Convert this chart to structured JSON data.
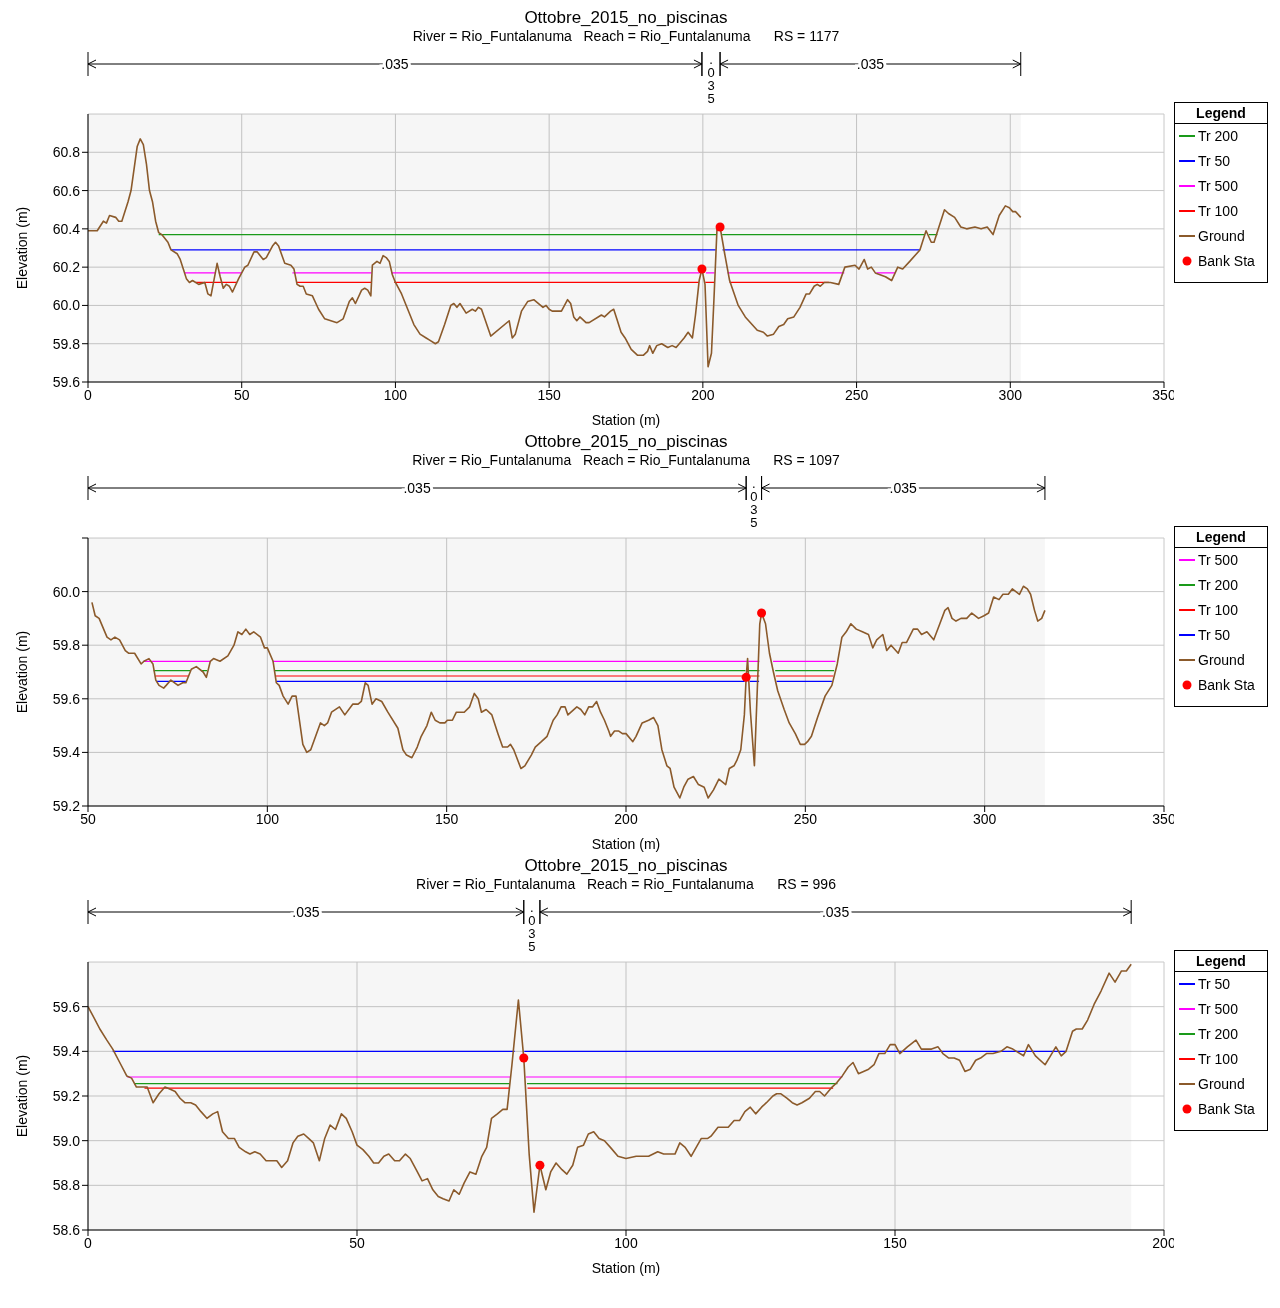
{
  "chart_data": [
    {
      "type": "line",
      "title": "Ottobre_2015_no_piscinas",
      "subtitle": "River = Rio_Funtalanuma   Reach = Rio_Funtalanuma      RS = 1177",
      "xlabel": "Station (m)",
      "ylabel": "Elevation (m)",
      "legend_title": "Legend",
      "legend": "right",
      "grid": true,
      "xlim": [
        0,
        350
      ],
      "xticks": [
        0,
        50,
        100,
        150,
        200,
        250,
        300,
        350
      ],
      "ylim": [
        59.6,
        61.0
      ],
      "yticks": [
        59.6,
        59.8,
        {
          "value": 60.0,
          "label": "60.0"
        },
        60.2,
        60.4,
        60.6,
        60.8
      ],
      "bands": [
        {
          "axis": "x",
          "from": 0,
          "to": 199.7,
          "label": ".035"
        },
        {
          "axis": "x",
          "from": 199.7,
          "to": 205.6,
          "label": ".035"
        },
        {
          "axis": "x",
          "from": 205.6,
          "to": 303.4,
          "label": ".035"
        }
      ],
      "series": [
        {
          "name": "Tr 200",
          "marker": "none",
          "color": "#1a9a1a",
          "x": [
            23,
            204.3,
            205.3,
            206.3,
            272.2,
            272.9,
            273.5,
            276.3
          ],
          "values": [
            60.37,
            60.37,
            null,
            60.37,
            60.37,
            null,
            60.37,
            60.37
          ]
        },
        {
          "name": "Tr 50",
          "marker": "none",
          "color": "#0000ff",
          "x": [
            27,
            59,
            61,
            62.5,
            204.2,
            205.3,
            206.4,
            270.6
          ],
          "values": [
            60.29,
            60.29,
            null,
            60.29,
            60.29,
            null,
            60.29,
            60.29
          ]
        },
        {
          "name": "Tr 500",
          "marker": "none",
          "color": "#ff00ff",
          "x": [
            31.5,
            41.5,
            42,
            42.5,
            50,
            58,
            66.5,
            92.2,
            95,
            98.8,
            199,
            200,
            201,
            203.8,
            205.5,
            208,
            246,
            250,
            256.5,
            262.5
          ],
          "values": [
            60.17,
            60.17,
            null,
            60.17,
            60.17,
            null,
            60.17,
            60.17,
            null,
            60.17,
            60.17,
            null,
            60.17,
            60.17,
            null,
            60.17,
            60.17,
            null,
            60.17,
            60.17
          ]
        },
        {
          "name": "Tr 100",
          "marker": "none",
          "color": "#ff0000",
          "x": [
            35,
            48.5,
            58,
            68,
            92.2,
            95,
            99.6,
            198.7,
            200,
            200.8,
            203.7,
            205.5,
            208.7,
            241
          ],
          "values": [
            60.12,
            60.12,
            null,
            60.12,
            60.12,
            null,
            60.12,
            60.12,
            null,
            60.12,
            60.12,
            null,
            60.12,
            60.12
          ]
        },
        {
          "name": "Ground",
          "marker": "none",
          "color": "#8b5a2b",
          "x": [
            0,
            3,
            5,
            6,
            7,
            9,
            10,
            11,
            13,
            14,
            16,
            17,
            18,
            19,
            20,
            21,
            22,
            23,
            24,
            26,
            27,
            29,
            30,
            31,
            32,
            33,
            34,
            36,
            38,
            39,
            40,
            42,
            43,
            44,
            45,
            46,
            47,
            49,
            51,
            52,
            54,
            55,
            57,
            58,
            60,
            61,
            62,
            64,
            66,
            67,
            68,
            69,
            70,
            71,
            73,
            75,
            77,
            79,
            81,
            83,
            85,
            86,
            87,
            89,
            90,
            91,
            92,
            92.5,
            94,
            95,
            96,
            97,
            98,
            99,
            100,
            102,
            104,
            106,
            108,
            110,
            111,
            113,
            114,
            116,
            118,
            119,
            120,
            121,
            123,
            125,
            126,
            127,
            128,
            131,
            137,
            138,
            139,
            141,
            143,
            145,
            148,
            149,
            150,
            151,
            154,
            155,
            156,
            157,
            158,
            159,
            160,
            162,
            163,
            167,
            168,
            170,
            171,
            172,
            173.4,
            174.7,
            176.7,
            178.7,
            180.7,
            182,
            182.7,
            183.7,
            185,
            186.6,
            188.6,
            190,
            191.3,
            193.9,
            195.2,
            196.6,
            197.6,
            198.8,
            199.7,
            200.7,
            201.7,
            202.8,
            203.6,
            204.6,
            205.6,
            207.1,
            208.7,
            211.5,
            213.8,
            217.7,
            219.7,
            221,
            223,
            224.7,
            226.3,
            227.6,
            229.6,
            231.6,
            233.6,
            234.7,
            236.2,
            237.2,
            238.2,
            239.5,
            241.5,
            244.2,
            246.2,
            249.5,
            250.8,
            252.5,
            253.6,
            254.8,
            256.1,
            259.4,
            261.4,
            263.4,
            265,
            267.3,
            270.6,
            272.6,
            274.3,
            275.2,
            276.6,
            278.6,
            279.9,
            281.9,
            283.9,
            285.8,
            288.5,
            290.5,
            292.5,
            294.4,
            296.4,
            298.4,
            299.7,
            300.8,
            301.7,
            303.4
          ],
          "values": [
            60.39,
            60.39,
            60.44,
            60.43,
            60.47,
            60.46,
            60.44,
            60.44,
            60.54,
            60.6,
            60.83,
            60.87,
            60.84,
            60.74,
            60.6,
            60.54,
            60.44,
            60.38,
            60.37,
            60.33,
            60.29,
            60.27,
            60.24,
            60.19,
            60.14,
            60.12,
            60.13,
            60.11,
            60.12,
            60.06,
            60.05,
            60.22,
            60.15,
            60.09,
            60.11,
            60.1,
            60.07,
            60.14,
            60.2,
            60.21,
            60.28,
            60.28,
            60.24,
            60.25,
            60.31,
            60.33,
            60.31,
            60.22,
            60.21,
            60.19,
            60.11,
            60.1,
            60.1,
            60.06,
            60.05,
            59.98,
            59.93,
            59.92,
            59.91,
            59.93,
            60.02,
            60.04,
            60.01,
            60.08,
            60.09,
            60.08,
            60.05,
            60.21,
            60.23,
            60.22,
            60.26,
            60.25,
            60.23,
            60.16,
            60.12,
            60.06,
            59.98,
            59.9,
            59.85,
            59.83,
            59.82,
            59.8,
            59.81,
            59.9,
            60.0,
            60.01,
            59.99,
            60.01,
            59.96,
            59.98,
            59.97,
            59.99,
            59.98,
            59.84,
            59.92,
            59.83,
            59.85,
            59.97,
            60.02,
            60.03,
            59.99,
            60.0,
            59.98,
            59.97,
            59.97,
            60.0,
            60.03,
            60.01,
            59.94,
            59.92,
            59.94,
            59.91,
            59.91,
            59.95,
            59.94,
            59.97,
            59.98,
            59.93,
            59.86,
            59.83,
            59.77,
            59.74,
            59.74,
            59.76,
            59.79,
            59.75,
            59.79,
            59.8,
            59.78,
            59.79,
            59.78,
            59.83,
            59.86,
            59.83,
            59.95,
            60.13,
            60.19,
            60.11,
            59.68,
            59.75,
            60.03,
            60.4,
            60.41,
            60.27,
            60.13,
            60.0,
            59.94,
            59.87,
            59.86,
            59.84,
            59.85,
            59.89,
            59.9,
            59.93,
            59.94,
            59.99,
            60.06,
            60.06,
            60.1,
            60.11,
            60.1,
            60.12,
            60.12,
            60.11,
            60.2,
            60.21,
            60.19,
            60.24,
            60.19,
            60.2,
            60.17,
            60.15,
            60.13,
            60.2,
            60.19,
            60.23,
            60.29,
            60.39,
            60.33,
            60.33,
            60.4,
            60.5,
            60.48,
            60.46,
            60.41,
            60.4,
            60.41,
            60.4,
            60.41,
            60.37,
            60.47,
            60.52,
            60.51,
            60.49,
            60.49,
            60.46
          ]
        },
        {
          "name": "Bank Sta",
          "type": "scatter",
          "marker": "circle",
          "color": "#ff0000",
          "x": [
            199.7,
            205.6
          ],
          "values": [
            60.19,
            60.41
          ]
        }
      ]
    },
    {
      "type": "line",
      "title": "Ottobre_2015_no_piscinas",
      "subtitle": "River = Rio_Funtalanuma   Reach = Rio_Funtalanuma      RS = 1097",
      "xlabel": "Station (m)",
      "ylabel": "Elevation (m)",
      "legend_title": "Legend",
      "legend": "right",
      "grid": true,
      "xlim": [
        50,
        350
      ],
      "xticks": [
        50,
        100,
        150,
        200,
        250,
        300,
        350
      ],
      "ylim": [
        59.2,
        60.2
      ],
      "yticks": [
        59.2,
        59.4,
        59.6,
        59.8,
        {
          "value": 60.0,
          "label": "60.0"
        },
        {
          "value": 60.2,
          "label": null
        }
      ],
      "bands": [
        {
          "axis": "x",
          "from": 50,
          "to": 233.5,
          "label": ".035"
        },
        {
          "axis": "x",
          "from": 233.5,
          "to": 237.8,
          "label": ".035"
        },
        {
          "axis": "x",
          "from": 237.8,
          "to": 316.8,
          "label": ".035"
        }
      ],
      "series": [
        {
          "name": "Tr 500",
          "marker": "none",
          "color": "#ff00ff",
          "x": [
            65.4,
            84.2,
            95,
            101.5,
            233.7,
            233.9,
            234.1,
            237.2,
            239,
            241,
            258.4
          ],
          "values": [
            59.74,
            59.74,
            null,
            59.74,
            59.74,
            null,
            59.74,
            59.74,
            null,
            59.74,
            59.74
          ]
        },
        {
          "name": "Tr 200",
          "marker": "none",
          "color": "#1a9a1a",
          "x": [
            68.3,
            78.5,
            80,
            81.5,
            83.2,
            95,
            102,
            233.3,
            233.8,
            234.3,
            237.2,
            239,
            241.6,
            258
          ],
          "values": [
            59.705,
            59.705,
            null,
            59.705,
            59.705,
            null,
            59.705,
            59.705,
            null,
            59.705,
            59.705,
            null,
            59.705,
            59.705
          ]
        },
        {
          "name": "Tr 100",
          "marker": "none",
          "color": "#ff0000",
          "x": [
            68.8,
            78,
            95,
            102.2,
            233.2,
            233.8,
            234.4,
            237.2,
            239,
            241.8,
            257.8
          ],
          "values": [
            59.685,
            59.685,
            null,
            59.685,
            59.685,
            null,
            59.685,
            59.685,
            null,
            59.685,
            59.685
          ]
        },
        {
          "name": "Tr 50",
          "marker": "none",
          "color": "#0000ff",
          "x": [
            69.2,
            77.3,
            95,
            102.5,
            233.1,
            233.8,
            234.5,
            237.1,
            239,
            242,
            257.4
          ],
          "values": [
            59.665,
            59.665,
            null,
            59.665,
            59.665,
            null,
            59.665,
            59.665,
            null,
            59.665,
            59.665
          ]
        },
        {
          "name": "Ground",
          "marker": "none",
          "color": "#8b5a2b",
          "x": [
            51.1,
            52,
            53.1,
            55.3,
            56.4,
            57.5,
            58.8,
            60.4,
            61.3,
            63,
            64.8,
            65.6,
            67,
            68.1,
            68.9,
            69.8,
            71.1,
            71.8,
            73.1,
            75.1,
            76.4,
            77.3,
            78.8,
            80.2,
            82.1,
            83,
            84.1,
            85,
            86.8,
            89,
            90.7,
            91.8,
            92.9,
            94,
            95.1,
            96.2,
            98.1,
            99.2,
            100,
            101.6,
            102.5,
            103.3,
            104.4,
            105.8,
            106.9,
            108,
            109.9,
            111,
            112.1,
            114.8,
            115.9,
            116.8,
            117.9,
            120.1,
            121.6,
            123.8,
            125.3,
            126.2,
            127.3,
            128.1,
            129.2,
            130.3,
            131.9,
            133.6,
            136.4,
            137.8,
            138.8,
            140.3,
            141.8,
            142.9,
            144.5,
            145.7,
            146.8,
            148.1,
            149.5,
            150.2,
            151.6,
            152.7,
            154.9,
            156.4,
            157.7,
            158.8,
            159.7,
            161,
            162.6,
            164.3,
            165.6,
            167,
            167.8,
            168.7,
            170.7,
            171.8,
            173.6,
            174.7,
            176.4,
            178,
            179.7,
            180.8,
            181.9,
            183,
            183.8,
            186.3,
            187.4,
            188.5,
            189.6,
            190.7,
            191.8,
            192.9,
            194,
            195.2,
            195.7,
            196.8,
            197.9,
            199,
            200,
            201.9,
            202.8,
            204.5,
            206.3,
            207.7,
            208.9,
            210,
            211.4,
            212.3,
            213.4,
            215,
            216.1,
            217.3,
            218.8,
            220.2,
            221.8,
            222.9,
            224.4,
            225.9,
            227.8,
            228.8,
            230.1,
            230.9,
            232,
            233,
            233.5,
            233.9,
            234.7,
            235.8,
            237.3,
            237.8,
            238.9,
            240,
            241.1,
            242.3,
            244.1,
            245.5,
            247.2,
            248.6,
            249.8,
            250.6,
            251.7,
            253.4,
            255.5,
            257.4,
            258.9,
            260.2,
            261.4,
            262.7,
            264.2,
            265.9,
            267.6,
            268.8,
            269.9,
            271.6,
            272.7,
            273.9,
            275.9,
            277,
            278.2,
            280.1,
            281.3,
            282.4,
            283.9,
            285.8,
            287.5,
            288.9,
            289.8,
            290.9,
            292,
            293.4,
            295,
            296.4,
            298.3,
            299.8,
            301.1,
            302.5,
            304,
            305.1,
            306.6,
            307.7,
            309.7,
            310.8,
            311.9,
            312.8,
            313.9,
            314.8,
            315.9,
            316.8
          ],
          "values": [
            59.96,
            59.91,
            59.9,
            59.83,
            59.82,
            59.83,
            59.82,
            59.78,
            59.77,
            59.77,
            59.73,
            59.74,
            59.75,
            59.73,
            59.67,
            59.65,
            59.64,
            59.65,
            59.67,
            59.65,
            59.66,
            59.66,
            59.71,
            59.72,
            59.7,
            59.68,
            59.74,
            59.75,
            59.74,
            59.76,
            59.8,
            59.85,
            59.84,
            59.86,
            59.84,
            59.85,
            59.83,
            59.79,
            59.79,
            59.74,
            59.66,
            59.65,
            59.61,
            59.58,
            59.61,
            59.61,
            59.43,
            59.4,
            59.41,
            59.51,
            59.5,
            59.51,
            59.55,
            59.57,
            59.54,
            59.58,
            59.58,
            59.59,
            59.66,
            59.65,
            59.58,
            59.6,
            59.59,
            59.55,
            59.49,
            59.41,
            59.39,
            59.38,
            59.42,
            59.46,
            59.5,
            59.55,
            59.52,
            59.51,
            59.51,
            59.52,
            59.52,
            59.55,
            59.55,
            59.57,
            59.62,
            59.6,
            59.55,
            59.56,
            59.54,
            59.47,
            59.42,
            59.42,
            59.43,
            59.41,
            59.34,
            59.35,
            59.39,
            59.42,
            59.44,
            59.46,
            59.52,
            59.54,
            59.57,
            59.57,
            59.54,
            59.57,
            59.56,
            59.54,
            59.57,
            59.57,
            59.59,
            59.55,
            59.52,
            59.48,
            59.46,
            59.48,
            59.48,
            59.47,
            59.47,
            59.44,
            59.46,
            59.51,
            59.52,
            59.53,
            59.5,
            59.41,
            59.35,
            59.34,
            59.27,
            59.23,
            59.27,
            59.3,
            59.31,
            59.28,
            59.27,
            59.23,
            59.26,
            59.3,
            59.28,
            59.34,
            59.35,
            59.37,
            59.41,
            59.54,
            59.68,
            59.75,
            59.55,
            59.35,
            59.88,
            59.92,
            59.88,
            59.77,
            59.7,
            59.63,
            59.56,
            59.51,
            59.47,
            59.43,
            59.43,
            59.44,
            59.46,
            59.53,
            59.61,
            59.65,
            59.73,
            59.83,
            59.85,
            59.88,
            59.86,
            59.85,
            59.84,
            59.79,
            59.82,
            59.84,
            59.78,
            59.8,
            59.77,
            59.81,
            59.81,
            59.86,
            59.86,
            59.84,
            59.85,
            59.82,
            59.88,
            59.93,
            59.94,
            59.9,
            59.89,
            59.9,
            59.9,
            59.92,
            59.9,
            59.91,
            59.92,
            59.98,
            59.97,
            59.99,
            59.99,
            60.01,
            59.99,
            60.02,
            60.01,
            59.99,
            59.93,
            59.89,
            59.9,
            59.93
          ]
        },
        {
          "name": "Bank Sta",
          "type": "scatter",
          "marker": "circle",
          "color": "#ff0000",
          "x": [
            233.5,
            237.8
          ],
          "values": [
            59.68,
            59.92
          ]
        }
      ]
    },
    {
      "type": "line",
      "title": "Ottobre_2015_no_piscinas",
      "subtitle": "River = Rio_Funtalanuma   Reach = Rio_Funtalanuma      RS = 996",
      "xlabel": "Station (m)",
      "ylabel": "Elevation (m)",
      "legend_title": "Legend",
      "legend": "right",
      "grid": true,
      "xlim": [
        0,
        200
      ],
      "xticks": [
        0,
        50,
        100,
        150,
        200
      ],
      "ylim": [
        58.6,
        59.8
      ],
      "yticks": [
        58.6,
        58.8,
        {
          "value": 59.0,
          "label": "59.0"
        },
        59.2,
        59.4,
        59.6
      ],
      "bands": [
        {
          "axis": "x",
          "from": 0,
          "to": 81,
          "label": ".035"
        },
        {
          "axis": "x",
          "from": 81,
          "to": 84,
          "label": ".035"
        },
        {
          "axis": "x",
          "from": 84,
          "to": 193.9,
          "label": ".035"
        }
      ],
      "series": [
        {
          "name": "Tr 50",
          "marker": "none",
          "color": "#0000ff",
          "x": [
            4.6,
            79.3,
            80,
            81.1,
            181.8
          ],
          "values": [
            59.4,
            59.4,
            null,
            59.4,
            59.4
          ]
        },
        {
          "name": "Tr 500",
          "marker": "none",
          "color": "#ff00ff",
          "x": [
            7.3,
            78.6,
            80,
            81.4,
            140.2
          ],
          "values": [
            59.285,
            59.285,
            null,
            59.285,
            59.285
          ]
        },
        {
          "name": "Tr 200",
          "marker": "none",
          "color": "#1a9a1a",
          "x": [
            8.6,
            78.4,
            80,
            81.6,
            139.3
          ],
          "values": [
            59.255,
            59.255,
            null,
            59.255,
            59.255
          ]
        },
        {
          "name": "Tr 100",
          "marker": "none",
          "color": "#ff0000",
          "x": [
            10.5,
            78.3,
            80,
            81.7,
            138.5
          ],
          "values": [
            59.235,
            59.235,
            null,
            59.235,
            59.235
          ]
        },
        {
          "name": "Ground",
          "marker": "none",
          "color": "#8b5a2b",
          "x": [
            0,
            0.9,
            2.2,
            3.5,
            4.6,
            5.9,
            7.2,
            8.1,
            9,
            10.3,
            11,
            12.1,
            13.2,
            14.3,
            15.3,
            16.2,
            17.1,
            18,
            19.1,
            20,
            21,
            22.1,
            23.2,
            24.1,
            25,
            26.1,
            27.2,
            28.1,
            29.3,
            30.1,
            31,
            32,
            33.1,
            34.2,
            35.1,
            36,
            37.1,
            38.1,
            39,
            40.1,
            41,
            41.9,
            43,
            44,
            45,
            46,
            47.1,
            48,
            49.1,
            50,
            51.1,
            52.2,
            53.1,
            54,
            55,
            55.9,
            57,
            57.9,
            59,
            59.9,
            61,
            62.1,
            63.1,
            64.1,
            65.1,
            66,
            67.1,
            68,
            69,
            69.9,
            71,
            72.1,
            73.2,
            74.1,
            75,
            76.1,
            77.1,
            77.9,
            78.8,
            80,
            81,
            82,
            82.9,
            84,
            85.1,
            86,
            87,
            88.1,
            89,
            90.1,
            91,
            92.1,
            93,
            94,
            95,
            96,
            97.1,
            98.5,
            100,
            101.9,
            104.2,
            105.9,
            107,
            109.1,
            110,
            111,
            112.1,
            114,
            115.2,
            115.8,
            117.1,
            119,
            120.1,
            121.1,
            122.1,
            123.1,
            124.1,
            125.2,
            126.1,
            127.3,
            128,
            128.8,
            129.9,
            130.9,
            131.8,
            132.7,
            134.1,
            135.2,
            136,
            136.9,
            138.3,
            139.2,
            140.2,
            141.3,
            142.2,
            143.2,
            145.1,
            146.1,
            147,
            148.1,
            149.1,
            150,
            150.9,
            152.3,
            153.9,
            154.9,
            156.8,
            158,
            158.9,
            160,
            161,
            162,
            163,
            164,
            165,
            165.9,
            167,
            168.2,
            169.7,
            170.8,
            171.9,
            173.9,
            174.8,
            176.1,
            177.9,
            178.9,
            179.9,
            180.9,
            181.8,
            183,
            183.7,
            184.8,
            185.8,
            187,
            188.3,
            189.8,
            190.9,
            192.1,
            193,
            193.9
          ],
          "values": [
            59.6,
            59.56,
            59.5,
            59.45,
            59.41,
            59.35,
            59.29,
            59.28,
            59.24,
            59.24,
            59.24,
            59.17,
            59.21,
            59.24,
            59.23,
            59.22,
            59.19,
            59.17,
            59.17,
            59.16,
            59.13,
            59.1,
            59.12,
            59.13,
            59.04,
            59.01,
            59.01,
            58.97,
            58.95,
            58.94,
            58.95,
            58.94,
            58.91,
            58.91,
            58.91,
            58.88,
            58.91,
            58.99,
            59.02,
            59.03,
            59.01,
            58.99,
            58.91,
            59.01,
            59.07,
            59.05,
            59.12,
            59.1,
            59.04,
            58.98,
            58.96,
            58.93,
            58.9,
            58.9,
            58.93,
            58.94,
            58.91,
            58.91,
            58.94,
            58.92,
            58.87,
            58.82,
            58.83,
            58.78,
            58.75,
            58.74,
            58.73,
            58.78,
            58.76,
            58.81,
            58.86,
            58.85,
            58.93,
            58.97,
            59.1,
            59.12,
            59.14,
            59.14,
            59.34,
            59.63,
            59.37,
            58.94,
            58.68,
            58.89,
            58.78,
            58.86,
            58.9,
            58.87,
            58.85,
            58.89,
            58.97,
            58.98,
            59.03,
            59.04,
            59.01,
            59.0,
            58.97,
            58.93,
            58.92,
            58.93,
            58.93,
            58.95,
            58.94,
            58.94,
            58.99,
            58.97,
            58.93,
            59.01,
            59.01,
            59.02,
            59.06,
            59.06,
            59.09,
            59.09,
            59.13,
            59.15,
            59.12,
            59.15,
            59.17,
            59.2,
            59.21,
            59.21,
            59.19,
            59.17,
            59.16,
            59.17,
            59.19,
            59.22,
            59.22,
            59.2,
            59.24,
            59.26,
            59.29,
            59.33,
            59.35,
            59.3,
            59.32,
            59.34,
            59.39,
            59.39,
            59.43,
            59.43,
            59.39,
            59.42,
            59.45,
            59.41,
            59.41,
            59.42,
            59.39,
            59.37,
            59.37,
            59.36,
            59.31,
            59.32,
            59.36,
            59.37,
            59.39,
            59.39,
            59.4,
            59.42,
            59.41,
            59.38,
            59.43,
            59.38,
            59.34,
            59.38,
            59.42,
            59.38,
            59.4,
            59.49,
            59.5,
            59.5,
            59.54,
            59.61,
            59.67,
            59.75,
            59.71,
            59.76,
            59.76,
            59.79
          ]
        },
        {
          "name": "Bank Sta",
          "type": "scatter",
          "marker": "circle",
          "color": "#ff0000",
          "x": [
            81,
            84
          ],
          "values": [
            59.37,
            58.89
          ]
        }
      ]
    }
  ]
}
